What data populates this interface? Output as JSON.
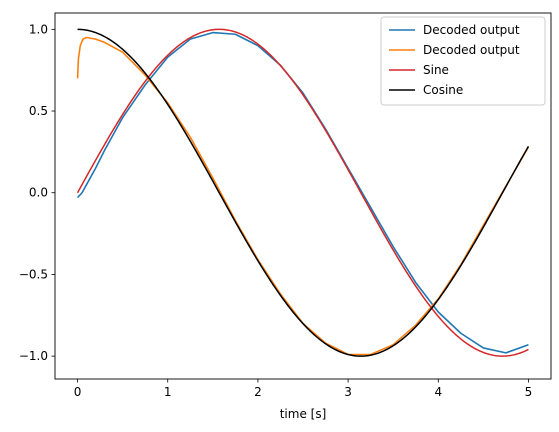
{
  "chart_data": {
    "type": "line",
    "title": "",
    "xlabel": "time [s]",
    "ylabel": "",
    "xlim": [
      -0.25,
      5.25
    ],
    "ylim": [
      -1.14,
      1.1
    ],
    "xticks": [
      0,
      1,
      2,
      3,
      4,
      5
    ],
    "xtick_labels": [
      "0",
      "1",
      "2",
      "3",
      "4",
      "5"
    ],
    "yticks": [
      -1.0,
      -0.5,
      0.0,
      0.5,
      1.0
    ],
    "ytick_labels": [
      "−1.0",
      "−0.5",
      "0.0",
      "0.5",
      "1.0"
    ],
    "grid": false,
    "legend_position": "top-right",
    "series": [
      {
        "name": "Decoded output",
        "color": "#1f77b4",
        "x": [
          0,
          0.05,
          0.1,
          0.2,
          0.3,
          0.5,
          0.75,
          1.0,
          1.25,
          1.5,
          1.75,
          2.0,
          2.25,
          2.5,
          2.75,
          3.0,
          3.25,
          3.5,
          3.75,
          4.0,
          4.25,
          4.5,
          4.75,
          5.0
        ],
        "y": [
          -0.03,
          0.0,
          0.05,
          0.15,
          0.26,
          0.46,
          0.66,
          0.83,
          0.94,
          0.98,
          0.97,
          0.9,
          0.78,
          0.61,
          0.39,
          0.15,
          -0.09,
          -0.33,
          -0.55,
          -0.73,
          -0.86,
          -0.95,
          -0.98,
          -0.93
        ]
      },
      {
        "name": "Decoded output",
        "color": "#ff7f0e",
        "x": [
          0,
          0.01,
          0.03,
          0.06,
          0.1,
          0.2,
          0.3,
          0.5,
          0.75,
          1.0,
          1.25,
          1.5,
          1.75,
          2.0,
          2.25,
          2.5,
          2.75,
          3.0,
          3.25,
          3.5,
          3.75,
          4.0,
          4.25,
          4.5,
          4.75,
          5.0
        ],
        "y": [
          0.7,
          0.82,
          0.9,
          0.94,
          0.95,
          0.94,
          0.92,
          0.86,
          0.72,
          0.55,
          0.34,
          0.09,
          -0.17,
          -0.41,
          -0.62,
          -0.8,
          -0.92,
          -0.99,
          -0.99,
          -0.93,
          -0.81,
          -0.65,
          -0.44,
          -0.2,
          0.04,
          0.28
        ]
      },
      {
        "name": "Sine",
        "color": "#d62728",
        "fn": "sin"
      },
      {
        "name": "Cosine",
        "color": "#000000",
        "fn": "cos"
      }
    ]
  }
}
